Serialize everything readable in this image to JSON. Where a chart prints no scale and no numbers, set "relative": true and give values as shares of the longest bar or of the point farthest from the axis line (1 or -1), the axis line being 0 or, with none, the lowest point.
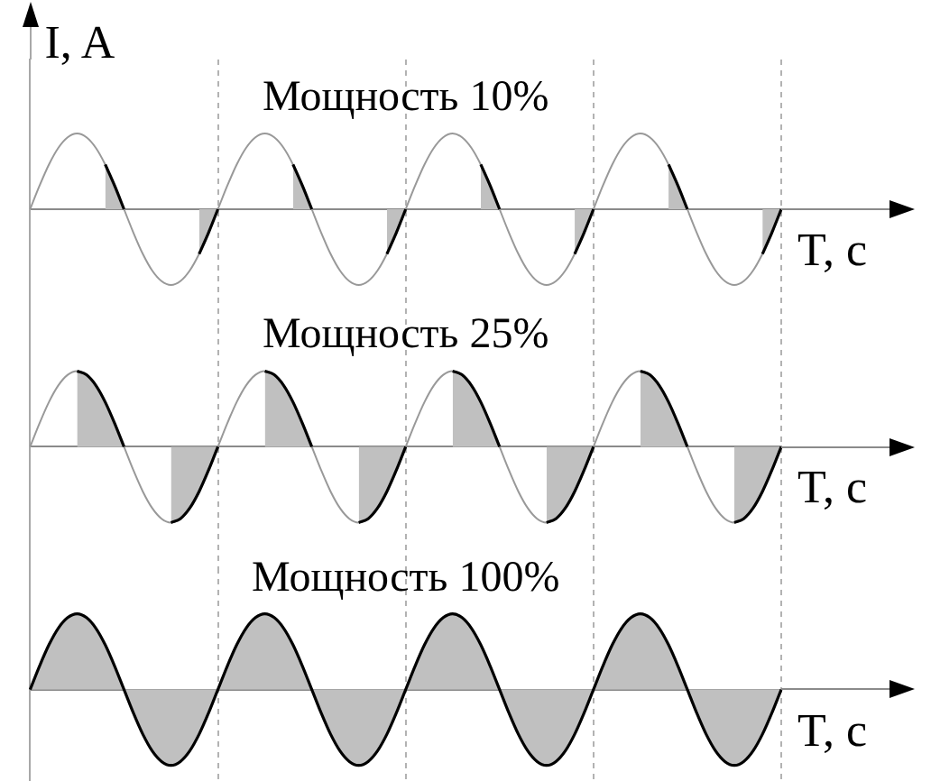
{
  "chart_data": [
    {
      "type": "line",
      "title": "Мощность 10%",
      "ylabel": "I, A",
      "xlabel": "T, с",
      "relative": true,
      "grid": "x",
      "marker": "none",
      "categories": [
        null,
        null,
        null,
        null,
        null,
        null,
        null,
        null,
        null,
        null,
        null,
        null,
        null,
        null,
        null,
        null,
        null,
        null,
        null,
        null,
        null,
        null,
        null,
        null,
        null,
        null,
        null,
        null,
        null,
        null,
        null,
        null,
        null,
        null,
        null,
        null,
        null,
        null,
        null,
        null,
        null,
        null,
        null,
        null,
        null,
        null,
        null,
        null,
        null,
        null,
        null,
        null,
        null,
        null,
        null,
        null,
        null,
        null,
        null,
        null,
        null,
        null,
        null,
        null,
        null,
        null,
        null,
        null,
        null,
        null,
        null,
        null,
        null,
        null,
        null,
        null,
        null,
        null,
        null,
        null,
        null
      ],
      "series": [
        {
          "type": "line",
          "color": "#999999",
          "values": [
            0,
            0.31,
            0.59,
            0.81,
            0.95,
            1,
            0.95,
            0.81,
            0.59,
            0.31,
            0,
            -0.31,
            -0.59,
            -0.81,
            -0.95,
            -1,
            -0.95,
            -0.81,
            -0.59,
            -0.31,
            0,
            0.31,
            0.59,
            0.81,
            0.95,
            1,
            0.95,
            0.81,
            0.59,
            0.31,
            0,
            -0.31,
            -0.59,
            -0.81,
            -0.95,
            -1,
            -0.95,
            -0.81,
            -0.59,
            -0.31,
            0,
            0.31,
            0.59,
            0.81,
            0.95,
            1,
            0.95,
            0.81,
            0.59,
            0.31,
            0,
            -0.31,
            -0.59,
            -0.81,
            -0.95,
            -1,
            -0.95,
            -0.81,
            -0.59,
            -0.31,
            0,
            0.31,
            0.59,
            0.81,
            0.95,
            1,
            0.95,
            0.81,
            0.59,
            0.31,
            0,
            -0.31,
            -0.59,
            -0.81,
            -0.95,
            -1,
            -0.95,
            -0.81,
            -0.59,
            -0.31,
            0
          ]
        },
        {
          "type": "area",
          "color": "#c0c0c0",
          "values": [
            null,
            null,
            null,
            null,
            null,
            null,
            null,
            null,
            0.59,
            0.31,
            0,
            null,
            null,
            null,
            null,
            null,
            null,
            null,
            -0.59,
            -0.31,
            0,
            null,
            null,
            null,
            null,
            null,
            null,
            null,
            0.59,
            0.31,
            0,
            null,
            null,
            null,
            null,
            null,
            null,
            null,
            -0.59,
            -0.31,
            0,
            null,
            null,
            null,
            null,
            null,
            null,
            null,
            0.59,
            0.31,
            0,
            null,
            null,
            null,
            null,
            null,
            null,
            null,
            -0.59,
            -0.31,
            0,
            null,
            null,
            null,
            null,
            null,
            null,
            null,
            0.59,
            0.31,
            0,
            null,
            null,
            null,
            null,
            null,
            null,
            null,
            -0.59,
            -0.31,
            0
          ]
        }
      ]
    },
    {
      "type": "line",
      "title": "Мощность 25%",
      "xlabel": "T, с",
      "relative": true,
      "grid": "x",
      "marker": "none",
      "categories": [
        null,
        null,
        null,
        null,
        null,
        null,
        null,
        null,
        null,
        null,
        null,
        null,
        null,
        null,
        null,
        null,
        null,
        null,
        null,
        null,
        null,
        null,
        null,
        null,
        null,
        null,
        null,
        null,
        null,
        null,
        null,
        null,
        null,
        null,
        null,
        null,
        null,
        null,
        null,
        null,
        null,
        null,
        null,
        null,
        null,
        null,
        null,
        null,
        null,
        null,
        null,
        null,
        null,
        null,
        null,
        null,
        null,
        null,
        null,
        null,
        null,
        null,
        null,
        null,
        null,
        null,
        null,
        null,
        null,
        null,
        null,
        null,
        null,
        null,
        null,
        null,
        null,
        null,
        null,
        null,
        null
      ],
      "series": [
        {
          "type": "line",
          "color": "#999999",
          "values": [
            0,
            0.31,
            0.59,
            0.81,
            0.95,
            1,
            0.95,
            0.81,
            0.59,
            0.31,
            0,
            -0.31,
            -0.59,
            -0.81,
            -0.95,
            -1,
            -0.95,
            -0.81,
            -0.59,
            -0.31,
            0,
            0.31,
            0.59,
            0.81,
            0.95,
            1,
            0.95,
            0.81,
            0.59,
            0.31,
            0,
            -0.31,
            -0.59,
            -0.81,
            -0.95,
            -1,
            -0.95,
            -0.81,
            -0.59,
            -0.31,
            0,
            0.31,
            0.59,
            0.81,
            0.95,
            1,
            0.95,
            0.81,
            0.59,
            0.31,
            0,
            -0.31,
            -0.59,
            -0.81,
            -0.95,
            -1,
            -0.95,
            -0.81,
            -0.59,
            -0.31,
            0,
            0.31,
            0.59,
            0.81,
            0.95,
            1,
            0.95,
            0.81,
            0.59,
            0.31,
            0,
            -0.31,
            -0.59,
            -0.81,
            -0.95,
            -1,
            -0.95,
            -0.81,
            -0.59,
            -0.31,
            0
          ]
        },
        {
          "type": "area",
          "color": "#c0c0c0",
          "values": [
            null,
            null,
            null,
            null,
            null,
            1,
            0.95,
            0.81,
            0.59,
            0.31,
            0,
            null,
            null,
            null,
            null,
            -1,
            -0.95,
            -0.81,
            -0.59,
            -0.31,
            0,
            null,
            null,
            null,
            null,
            1,
            0.95,
            0.81,
            0.59,
            0.31,
            0,
            null,
            null,
            null,
            null,
            -1,
            -0.95,
            -0.81,
            -0.59,
            -0.31,
            0,
            null,
            null,
            null,
            null,
            1,
            0.95,
            0.81,
            0.59,
            0.31,
            0,
            null,
            null,
            null,
            null,
            -1,
            -0.95,
            -0.81,
            -0.59,
            -0.31,
            0,
            null,
            null,
            null,
            null,
            1,
            0.95,
            0.81,
            0.59,
            0.31,
            0,
            null,
            null,
            null,
            null,
            -1,
            -0.95,
            -0.81,
            -0.59,
            -0.31,
            0
          ]
        }
      ]
    },
    {
      "type": "area",
      "title": "Мощность 100%",
      "xlabel": "T, с",
      "relative": true,
      "grid": "x",
      "marker": "none",
      "categories": [
        null,
        null,
        null,
        null,
        null,
        null,
        null,
        null,
        null,
        null,
        null,
        null,
        null,
        null,
        null,
        null,
        null,
        null,
        null,
        null,
        null,
        null,
        null,
        null,
        null,
        null,
        null,
        null,
        null,
        null,
        null,
        null,
        null,
        null,
        null,
        null,
        null,
        null,
        null,
        null,
        null,
        null,
        null,
        null,
        null,
        null,
        null,
        null,
        null,
        null,
        null,
        null,
        null,
        null,
        null,
        null,
        null,
        null,
        null,
        null,
        null,
        null,
        null,
        null,
        null,
        null,
        null,
        null,
        null,
        null,
        null,
        null,
        null,
        null,
        null,
        null,
        null,
        null,
        null,
        null,
        null
      ],
      "color": "#c0c0c0",
      "values": [
        0,
        0.31,
        0.59,
        0.81,
        0.95,
        1,
        0.95,
        0.81,
        0.59,
        0.31,
        0,
        -0.31,
        -0.59,
        -0.81,
        -0.95,
        -1,
        -0.95,
        -0.81,
        -0.59,
        -0.31,
        0,
        0.31,
        0.59,
        0.81,
        0.95,
        1,
        0.95,
        0.81,
        0.59,
        0.31,
        0,
        -0.31,
        -0.59,
        -0.81,
        -0.95,
        -1,
        -0.95,
        -0.81,
        -0.59,
        -0.31,
        0,
        0.31,
        0.59,
        0.81,
        0.95,
        1,
        0.95,
        0.81,
        0.59,
        0.31,
        0,
        -0.31,
        -0.59,
        -0.81,
        -0.95,
        -1,
        -0.95,
        -0.81,
        -0.59,
        -0.31,
        0,
        0.31,
        0.59,
        0.81,
        0.95,
        1,
        0.95,
        0.81,
        0.59,
        0.31,
        0,
        -0.31,
        -0.59,
        -0.81,
        -0.95,
        -1,
        -0.95,
        -0.81,
        -0.59,
        -0.31,
        0
      ]
    }
  ]
}
